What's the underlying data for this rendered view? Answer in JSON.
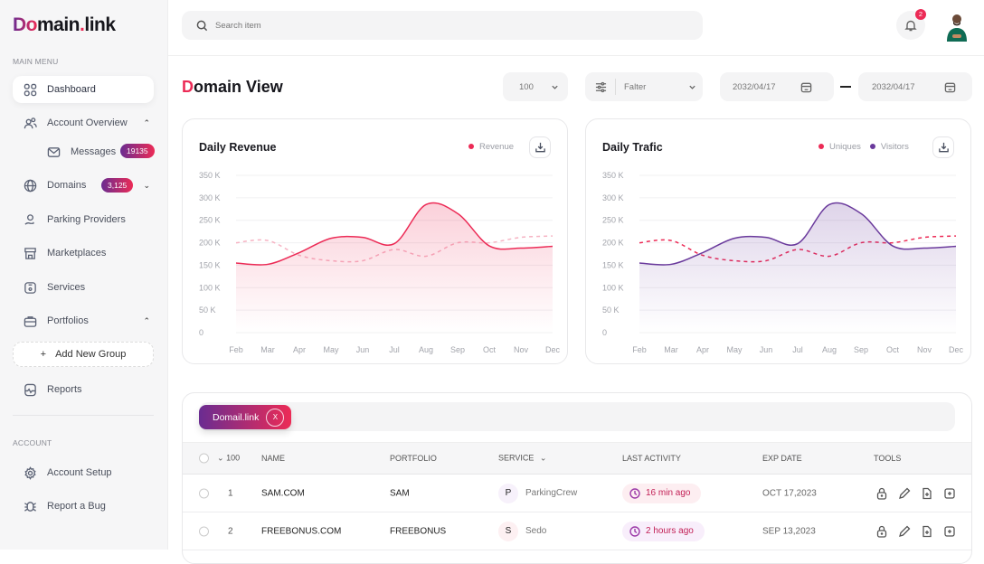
{
  "brand": {
    "logo_text": "Domain.link"
  },
  "sidebar": {
    "main_menu_label": "MAIN MENU",
    "items": [
      {
        "label": "Dashboard",
        "icon": "grid-icon"
      },
      {
        "label": "Account Overview",
        "icon": "users-icon"
      },
      {
        "label": "Messages",
        "icon": "mail-icon",
        "badge": "19135"
      },
      {
        "label": "Domains",
        "icon": "globe-icon",
        "badge": "3,125"
      },
      {
        "label": "Parking Providers",
        "icon": "hand-coin-icon"
      },
      {
        "label": "Marketplaces",
        "icon": "store-icon"
      },
      {
        "label": "Services",
        "icon": "box-icon"
      },
      {
        "label": "Portfolios",
        "icon": "briefcase-icon"
      },
      {
        "label": "Reports",
        "icon": "report-icon"
      }
    ],
    "add_group_label": "Add New Group",
    "account_label": "ACCOUNT",
    "account_items": [
      {
        "label": "Account Setup",
        "icon": "gear-icon"
      },
      {
        "label": "Report a Bug",
        "icon": "bug-icon"
      }
    ]
  },
  "header": {
    "search_placeholder": "Search item",
    "notification_count": "2"
  },
  "page": {
    "title_first": "D",
    "title_rest": "omain View",
    "page_size": "100",
    "filter_label": "Falter",
    "date_from": "2032/04/17",
    "date_to": "2032/04/17"
  },
  "colors": {
    "accent_red": "#ec2b56",
    "accent_purple": "#6a2c91"
  },
  "chart_data": [
    {
      "type": "area",
      "title": "Daily Revenue",
      "categories": [
        "Feb",
        "Mar",
        "Apr",
        "May",
        "Jun",
        "Jul",
        "Aug",
        "Sep",
        "Oct",
        "Nov",
        "Dec"
      ],
      "yticks": [
        "0",
        "50 K",
        "100 K",
        "150 K",
        "200 K",
        "250 K",
        "300 K",
        "350 K"
      ],
      "ylim": [
        0,
        350
      ],
      "grid": true,
      "legend": "top-right",
      "series": [
        {
          "name": "Revenue",
          "color": "#ec2b56",
          "style": "solid",
          "values": [
            155,
            152,
            178,
            210,
            212,
            198,
            285,
            265,
            193,
            188,
            192
          ]
        },
        {
          "color": "#f6b3c3",
          "style": "dashed",
          "values": [
            200,
            205,
            172,
            160,
            160,
            185,
            170,
            200,
            200,
            212,
            215
          ]
        }
      ]
    },
    {
      "type": "area",
      "title": "Daily Trafic",
      "categories": [
        "Feb",
        "Mar",
        "Apr",
        "May",
        "Jun",
        "Jul",
        "Aug",
        "Sep",
        "Oct",
        "Nov",
        "Dec"
      ],
      "yticks": [
        "0",
        "50 K",
        "100 K",
        "150 K",
        "200 K",
        "250 K",
        "300 K",
        "350 K"
      ],
      "ylim": [
        0,
        350
      ],
      "grid": true,
      "legend": "top-right",
      "series": [
        {
          "name": "Visitors",
          "color": "#6a3a9c",
          "style": "solid",
          "values": [
            155,
            152,
            178,
            210,
            212,
            198,
            285,
            265,
            193,
            188,
            192
          ]
        },
        {
          "name": "Uniques",
          "color": "#ec2b56",
          "style": "dashed",
          "values": [
            200,
            205,
            172,
            160,
            160,
            185,
            170,
            200,
            200,
            212,
            215
          ]
        }
      ]
    }
  ],
  "table": {
    "chip_label": "Domail.link",
    "chip_close": "X",
    "page_size": "100",
    "columns": [
      "NAME",
      "PORTFOLIO",
      "SERVICE",
      "LAST ACTIVITY",
      "EXP DATE",
      "TOOLS"
    ],
    "rows": [
      {
        "num": "1",
        "name": "SAM.COM",
        "portfolio": "SAM",
        "service_letter": "P",
        "service": "ParkingCrew",
        "activity": "16 min ago",
        "exp": "OCT 17,2023"
      },
      {
        "num": "2",
        "name": "FREEBONUS.COM",
        "portfolio": "FREEBONUS",
        "service_letter": "S",
        "service": "Sedo",
        "activity": "2 hours ago",
        "exp": "SEP 13,2023"
      }
    ]
  }
}
